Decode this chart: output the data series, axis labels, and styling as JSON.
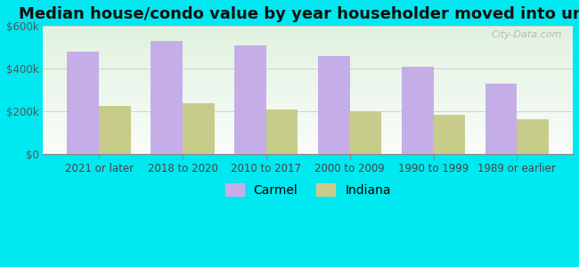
{
  "title": "Median house/condo value by year householder moved into unit",
  "categories": [
    "2021 or later",
    "2018 to 2020",
    "2010 to 2017",
    "2000 to 2009",
    "1990 to 1999",
    "1989 or earlier"
  ],
  "carmel_values": [
    480000,
    530000,
    510000,
    460000,
    410000,
    330000
  ],
  "indiana_values": [
    225000,
    237000,
    210000,
    202000,
    183000,
    163000
  ],
  "carmel_color": "#c5aee8",
  "indiana_color": "#c8cc8a",
  "background_outer": "#00e8f0",
  "ylim": [
    0,
    600000
  ],
  "yticks": [
    0,
    200000,
    400000,
    600000
  ],
  "ytick_labels": [
    "$0",
    "$200k",
    "$400k",
    "$600k"
  ],
  "bar_width": 0.38,
  "legend_labels": [
    "Carmel",
    "Indiana"
  ],
  "watermark": "City-Data.com",
  "title_fontsize": 13,
  "tick_fontsize": 8.5,
  "legend_fontsize": 10
}
